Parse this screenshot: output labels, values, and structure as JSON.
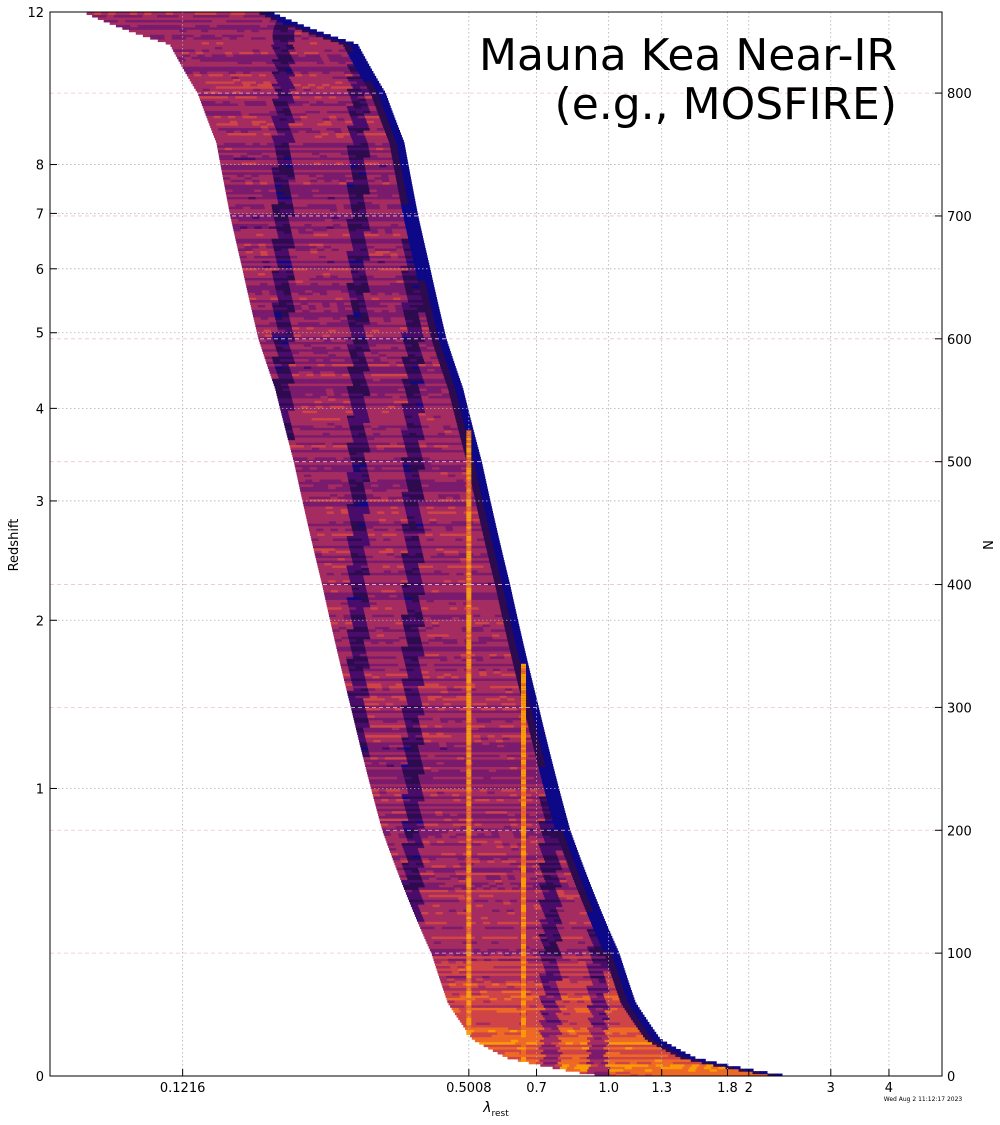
{
  "chart_data": {
    "type": "heatmap",
    "title_line1": "Mauna Kea Near-IR",
    "title_line2": "(e.g., MOSFIRE)",
    "xlabel_main": "λ",
    "xlabel_sub": "rest",
    "ylabel_left": "Redshift",
    "ylabel_right": "N",
    "timestamp": "Wed Aug  2 11:12:17 2023",
    "x_scale": "log",
    "x_range": [
      0.0631,
      5.2
    ],
    "x_ticks": [
      {
        "value": 0.1216,
        "label": "0.1216"
      },
      {
        "value": 0.5008,
        "label": "0.5008"
      },
      {
        "value": 0.7,
        "label": "0.7"
      },
      {
        "value": 1.0,
        "label": "1.0"
      },
      {
        "value": 1.3,
        "label": "1.3"
      },
      {
        "value": 1.8,
        "label": "1.8"
      },
      {
        "value": 2.0,
        "label": "2"
      },
      {
        "value": 3.0,
        "label": "3"
      },
      {
        "value": 4.0,
        "label": "4"
      }
    ],
    "y_left_scale": "log(1+z)",
    "y_left_range": [
      0,
      12
    ],
    "y_left_ticks": [
      {
        "value": 0,
        "label": "0"
      },
      {
        "value": 1,
        "label": "1"
      },
      {
        "value": 2,
        "label": "2"
      },
      {
        "value": 3,
        "label": "3"
      },
      {
        "value": 4,
        "label": "4"
      },
      {
        "value": 5,
        "label": "5"
      },
      {
        "value": 6,
        "label": "6"
      },
      {
        "value": 7,
        "label": "7"
      },
      {
        "value": 8,
        "label": "8"
      },
      {
        "value": 12,
        "label": "12"
      }
    ],
    "y_right_range": [
      0,
      866
    ],
    "y_right_ticks": [
      {
        "value": 0,
        "label": "0"
      },
      {
        "value": 100,
        "label": "100"
      },
      {
        "value": 200,
        "label": "200"
      },
      {
        "value": 300,
        "label": "300"
      },
      {
        "value": 400,
        "label": "400"
      },
      {
        "value": 500,
        "label": "500"
      },
      {
        "value": 600,
        "label": "600"
      },
      {
        "value": 700,
        "label": "700"
      },
      {
        "value": 800,
        "label": "800"
      }
    ],
    "observed_window_um": [
      0.97,
      2.45
    ],
    "redshift_profile": [
      {
        "n": 0,
        "z": 0.0
      },
      {
        "n": 15,
        "z": 0.6
      },
      {
        "n": 30,
        "z": 0.9
      },
      {
        "n": 60,
        "z": 1.15
      },
      {
        "n": 100,
        "z": 1.33
      },
      {
        "n": 200,
        "z": 1.97
      },
      {
        "n": 300,
        "z": 2.47
      },
      {
        "n": 400,
        "z": 3.0
      },
      {
        "n": 500,
        "z": 3.6
      },
      {
        "n": 560,
        "z": 4.05
      },
      {
        "n": 600,
        "z": 4.48
      },
      {
        "n": 660,
        "z": 4.96
      },
      {
        "n": 700,
        "z": 5.3
      },
      {
        "n": 760,
        "z": 5.75
      },
      {
        "n": 800,
        "z": 6.4
      },
      {
        "n": 840,
        "z": 7.5
      },
      {
        "n": 866,
        "z": 12.0
      }
    ],
    "emission_lines_um": [
      0.5008,
      0.6563
    ],
    "absorption_features_um": [
      0.2,
      0.29,
      0.38,
      0.75,
      0.95
    ],
    "colormap": [
      "#0d0887",
      "#2d0b4e",
      "#4a0c6b",
      "#7a1b6d",
      "#a52c60",
      "#cf4446",
      "#ed6925",
      "#fb9b06",
      "#f7d13d",
      "#fcffa4"
    ],
    "grid": true
  }
}
